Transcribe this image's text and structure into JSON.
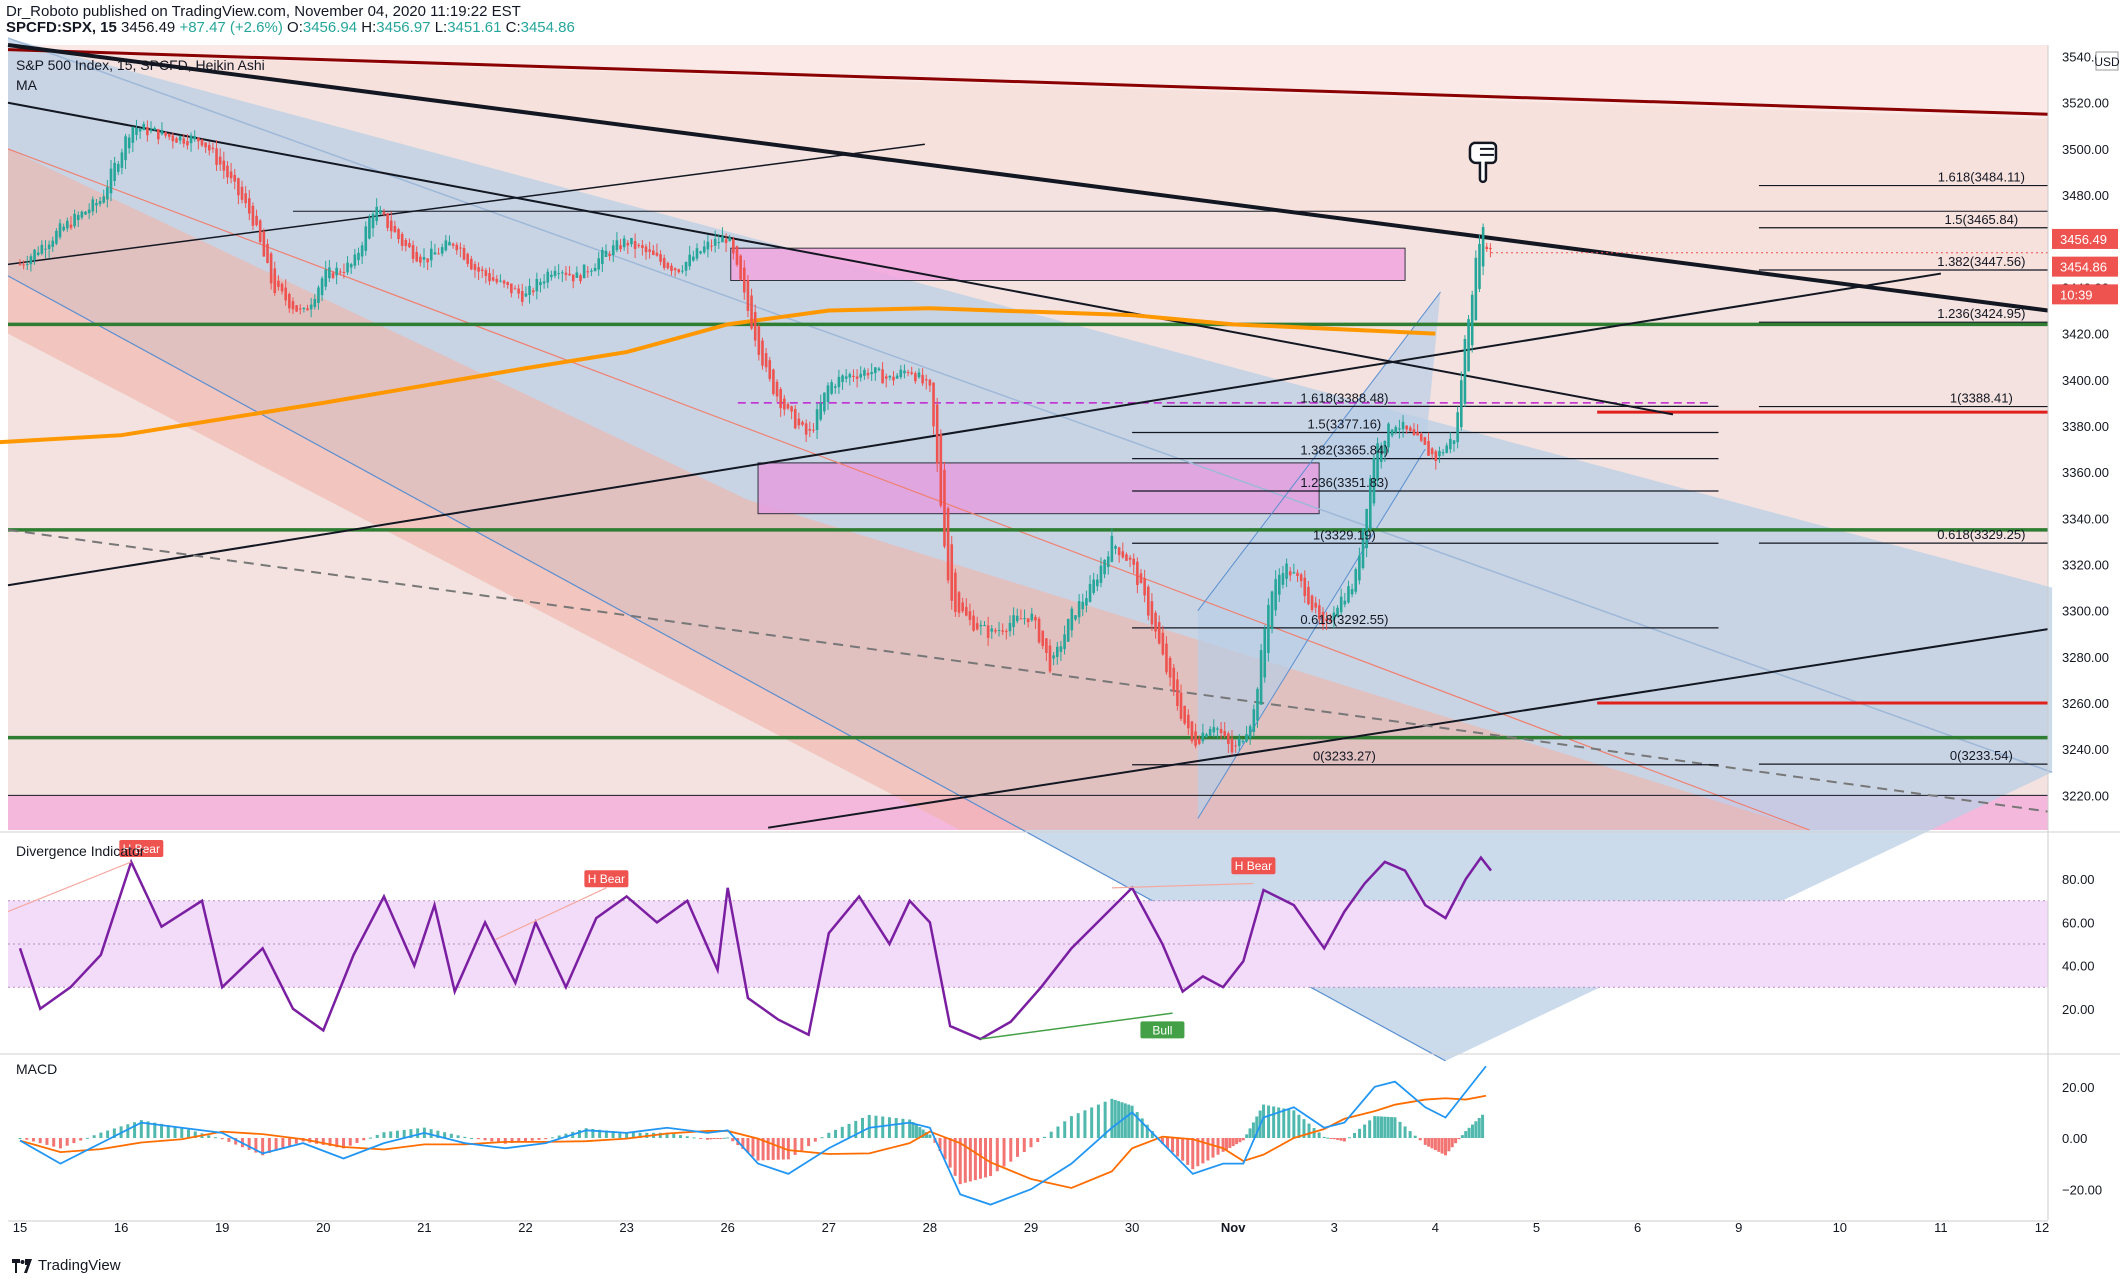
{
  "header": {
    "publisher_line": "Dr_Roboto published on TradingView.com, November 04, 2020 11:19:22 EST",
    "symbol": "SPCFD:SPX, 15",
    "last": "3456.49",
    "change": "+87.47 (+2.6%)",
    "open_label": "O:",
    "open": "3456.94",
    "high_label": "H:",
    "high": "3456.97",
    "low_label": "L:",
    "low": "3451.61",
    "close_label": "C:",
    "close": "3454.86"
  },
  "legend": {
    "title": "S&P 500 Index, 15, SPCFD, Heikin Ashi",
    "ma": "MA"
  },
  "currency": "USD",
  "price_tags": {
    "last": "3456.49",
    "close": "3454.86",
    "timer": "10:39"
  },
  "colors": {
    "up": "#26a69a",
    "down": "#ef5350",
    "ma": "#ff9800",
    "support": "#2e7d32",
    "trend_red": "#8b0000",
    "channel_blue": "#9fb8d8",
    "divergence": "#7b1fa2",
    "macd_blue": "#2196f3",
    "macd_orange": "#ff6d00"
  },
  "chart_data": [
    {
      "type": "candlestick",
      "title": "S&P 500 Index, 15, SPCFD, Heikin Ashi",
      "ylim": [
        3205,
        3545
      ],
      "y_ticks": [
        "3220.00",
        "3240.00",
        "3260.00",
        "3280.00",
        "3300.00",
        "3320.00",
        "3340.00",
        "3360.00",
        "3380.00",
        "3400.00",
        "3420.00",
        "3440.00",
        "3460.00",
        "3480.00",
        "3500.00",
        "3520.00",
        "3540.00"
      ],
      "x_tick_labels": [
        "15",
        "16",
        "19",
        "20",
        "21",
        "22",
        "23",
        "26",
        "27",
        "28",
        "29",
        "30",
        "Nov",
        "3",
        "4",
        "5",
        "6",
        "9",
        "10",
        "11",
        "12"
      ],
      "close_path": [
        [
          0,
          3450
        ],
        [
          0.4,
          3465
        ],
        [
          0.8,
          3478
        ],
        [
          1.1,
          3510
        ],
        [
          1.5,
          3505
        ],
        [
          1.8,
          3504
        ],
        [
          2.0,
          3492
        ],
        [
          2.3,
          3470
        ],
        [
          2.5,
          3440
        ],
        [
          2.8,
          3428
        ],
        [
          3.0,
          3445
        ],
        [
          3.3,
          3450
        ],
        [
          3.5,
          3475
        ],
        [
          3.8,
          3458
        ],
        [
          4.0,
          3452
        ],
        [
          4.3,
          3460
        ],
        [
          4.5,
          3448
        ],
        [
          4.8,
          3440
        ],
        [
          5.0,
          3436
        ],
        [
          5.3,
          3450
        ],
        [
          5.5,
          3444
        ],
        [
          5.8,
          3455
        ],
        [
          6.0,
          3460
        ],
        [
          6.3,
          3452
        ],
        [
          6.5,
          3448
        ],
        [
          6.8,
          3458
        ],
        [
          7.0,
          3462
        ],
        [
          7.2,
          3430
        ],
        [
          7.4,
          3400
        ],
        [
          7.6,
          3385
        ],
        [
          7.8,
          3375
        ],
        [
          8.0,
          3398
        ],
        [
          8.2,
          3402
        ],
        [
          8.4,
          3404
        ],
        [
          8.6,
          3400
        ],
        [
          8.8,
          3405
        ],
        [
          9.0,
          3395
        ],
        [
          9.2,
          3305
        ],
        [
          9.4,
          3295
        ],
        [
          9.6,
          3290
        ],
        [
          9.8,
          3295
        ],
        [
          10.0,
          3298
        ],
        [
          10.2,
          3275
        ],
        [
          10.4,
          3298
        ],
        [
          10.6,
          3310
        ],
        [
          10.8,
          3330
        ],
        [
          11.0,
          3320
        ],
        [
          11.2,
          3295
        ],
        [
          11.4,
          3265
        ],
        [
          11.6,
          3242
        ],
        [
          11.8,
          3252
        ],
        [
          12.0,
          3238
        ],
        [
          12.2,
          3255
        ],
        [
          12.35,
          3305
        ],
        [
          12.5,
          3320
        ],
        [
          12.7,
          3310
        ],
        [
          12.9,
          3290
        ],
        [
          13.0,
          3302
        ],
        [
          13.2,
          3312
        ],
        [
          13.4,
          3370
        ],
        [
          13.6,
          3382
        ],
        [
          13.8,
          3374
        ],
        [
          14.0,
          3366
        ],
        [
          14.2,
          3376
        ],
        [
          14.3,
          3420
        ],
        [
          14.45,
          3466
        ],
        [
          14.55,
          3455
        ]
      ]
    },
    {
      "type": "line",
      "title": "Divergence Indicator",
      "ylim": [
        0,
        100
      ],
      "y_ticks": [
        "20.00",
        "40.00",
        "60.00",
        "80.00"
      ],
      "labels": [
        "H Bear",
        "H Bear",
        "H Bear",
        "Bull"
      ]
    },
    {
      "type": "bar",
      "title": "MACD",
      "ylim": [
        -32,
        32
      ],
      "y_ticks": [
        "20.00",
        "0.00",
        "−20.00"
      ]
    }
  ],
  "fib_left": [
    "1.618(3388.48)",
    "1.5(3377.16)",
    "1.382(3365.84)",
    "1.236(3351.83)",
    "1(3329.19)",
    "0.618(3292.55)",
    "0(3233.27)"
  ],
  "fib_right": [
    "1.618(3484.11)",
    "1.5(3465.84)",
    "1.382(3447.56)",
    "1.236(3424.95)",
    "1(3388.41)",
    "0.618(3329.25)",
    "0(3233.54)"
  ],
  "footer": {
    "brand": "TradingView"
  }
}
